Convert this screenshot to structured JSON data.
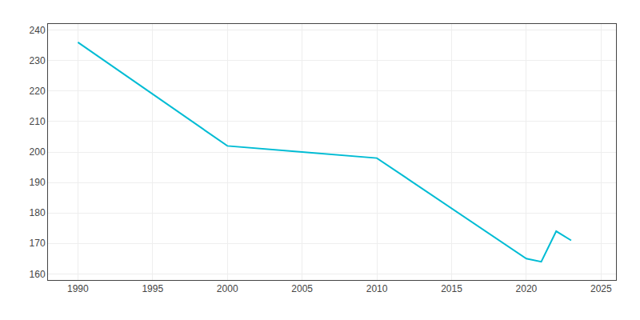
{
  "chart_data": {
    "type": "line",
    "x": [
      1990,
      2000,
      2005,
      2010,
      2020,
      2021,
      2022,
      2023
    ],
    "values": [
      236,
      202,
      200,
      198,
      165,
      164,
      174,
      171
    ],
    "color": "#00bcd4",
    "xlim": [
      1988,
      2026
    ],
    "ylim": [
      158,
      242
    ],
    "xticks": [
      1990,
      1995,
      2000,
      2005,
      2010,
      2015,
      2020,
      2025
    ],
    "yticks": [
      160,
      170,
      180,
      190,
      200,
      210,
      220,
      230,
      240
    ],
    "grid": true
  }
}
